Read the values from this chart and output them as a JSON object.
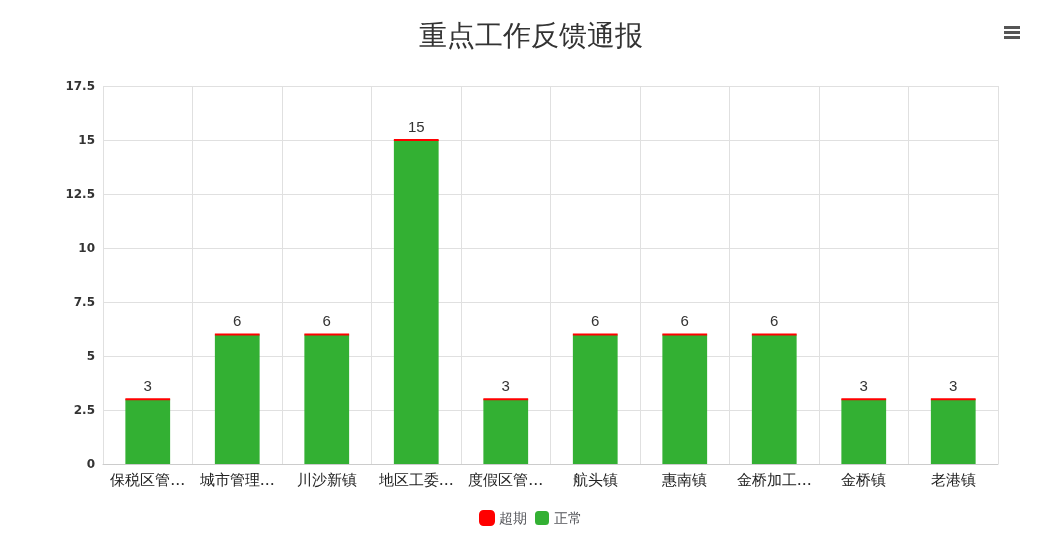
{
  "chart_data": {
    "type": "bar",
    "title": "重点工作反馈通报",
    "categories": [
      "保税区管…",
      "城市管理…",
      "川沙新镇",
      "地区工委…",
      "度假区管…",
      "航头镇",
      "惠南镇",
      "金桥加工…",
      "金桥镇",
      "老港镇"
    ],
    "series": [
      {
        "name": "正常",
        "color": "#33b033",
        "values": [
          3,
          6,
          6,
          15,
          3,
          6,
          6,
          6,
          3,
          3
        ]
      },
      {
        "name": "超期",
        "color": "#ff0000",
        "values": [
          0,
          0,
          0,
          0,
          0,
          0,
          0,
          0,
          0,
          0
        ]
      }
    ],
    "stacked": true,
    "totals": [
      "3",
      "6",
      "6",
      "15",
      "3",
      "6",
      "6",
      "6",
      "3",
      "3"
    ],
    "ylim": [
      0,
      17.5
    ],
    "yticks": [
      0,
      2.5,
      5,
      7.5,
      10,
      12.5,
      15,
      17.5
    ],
    "grid": true,
    "legend": "bottom"
  }
}
